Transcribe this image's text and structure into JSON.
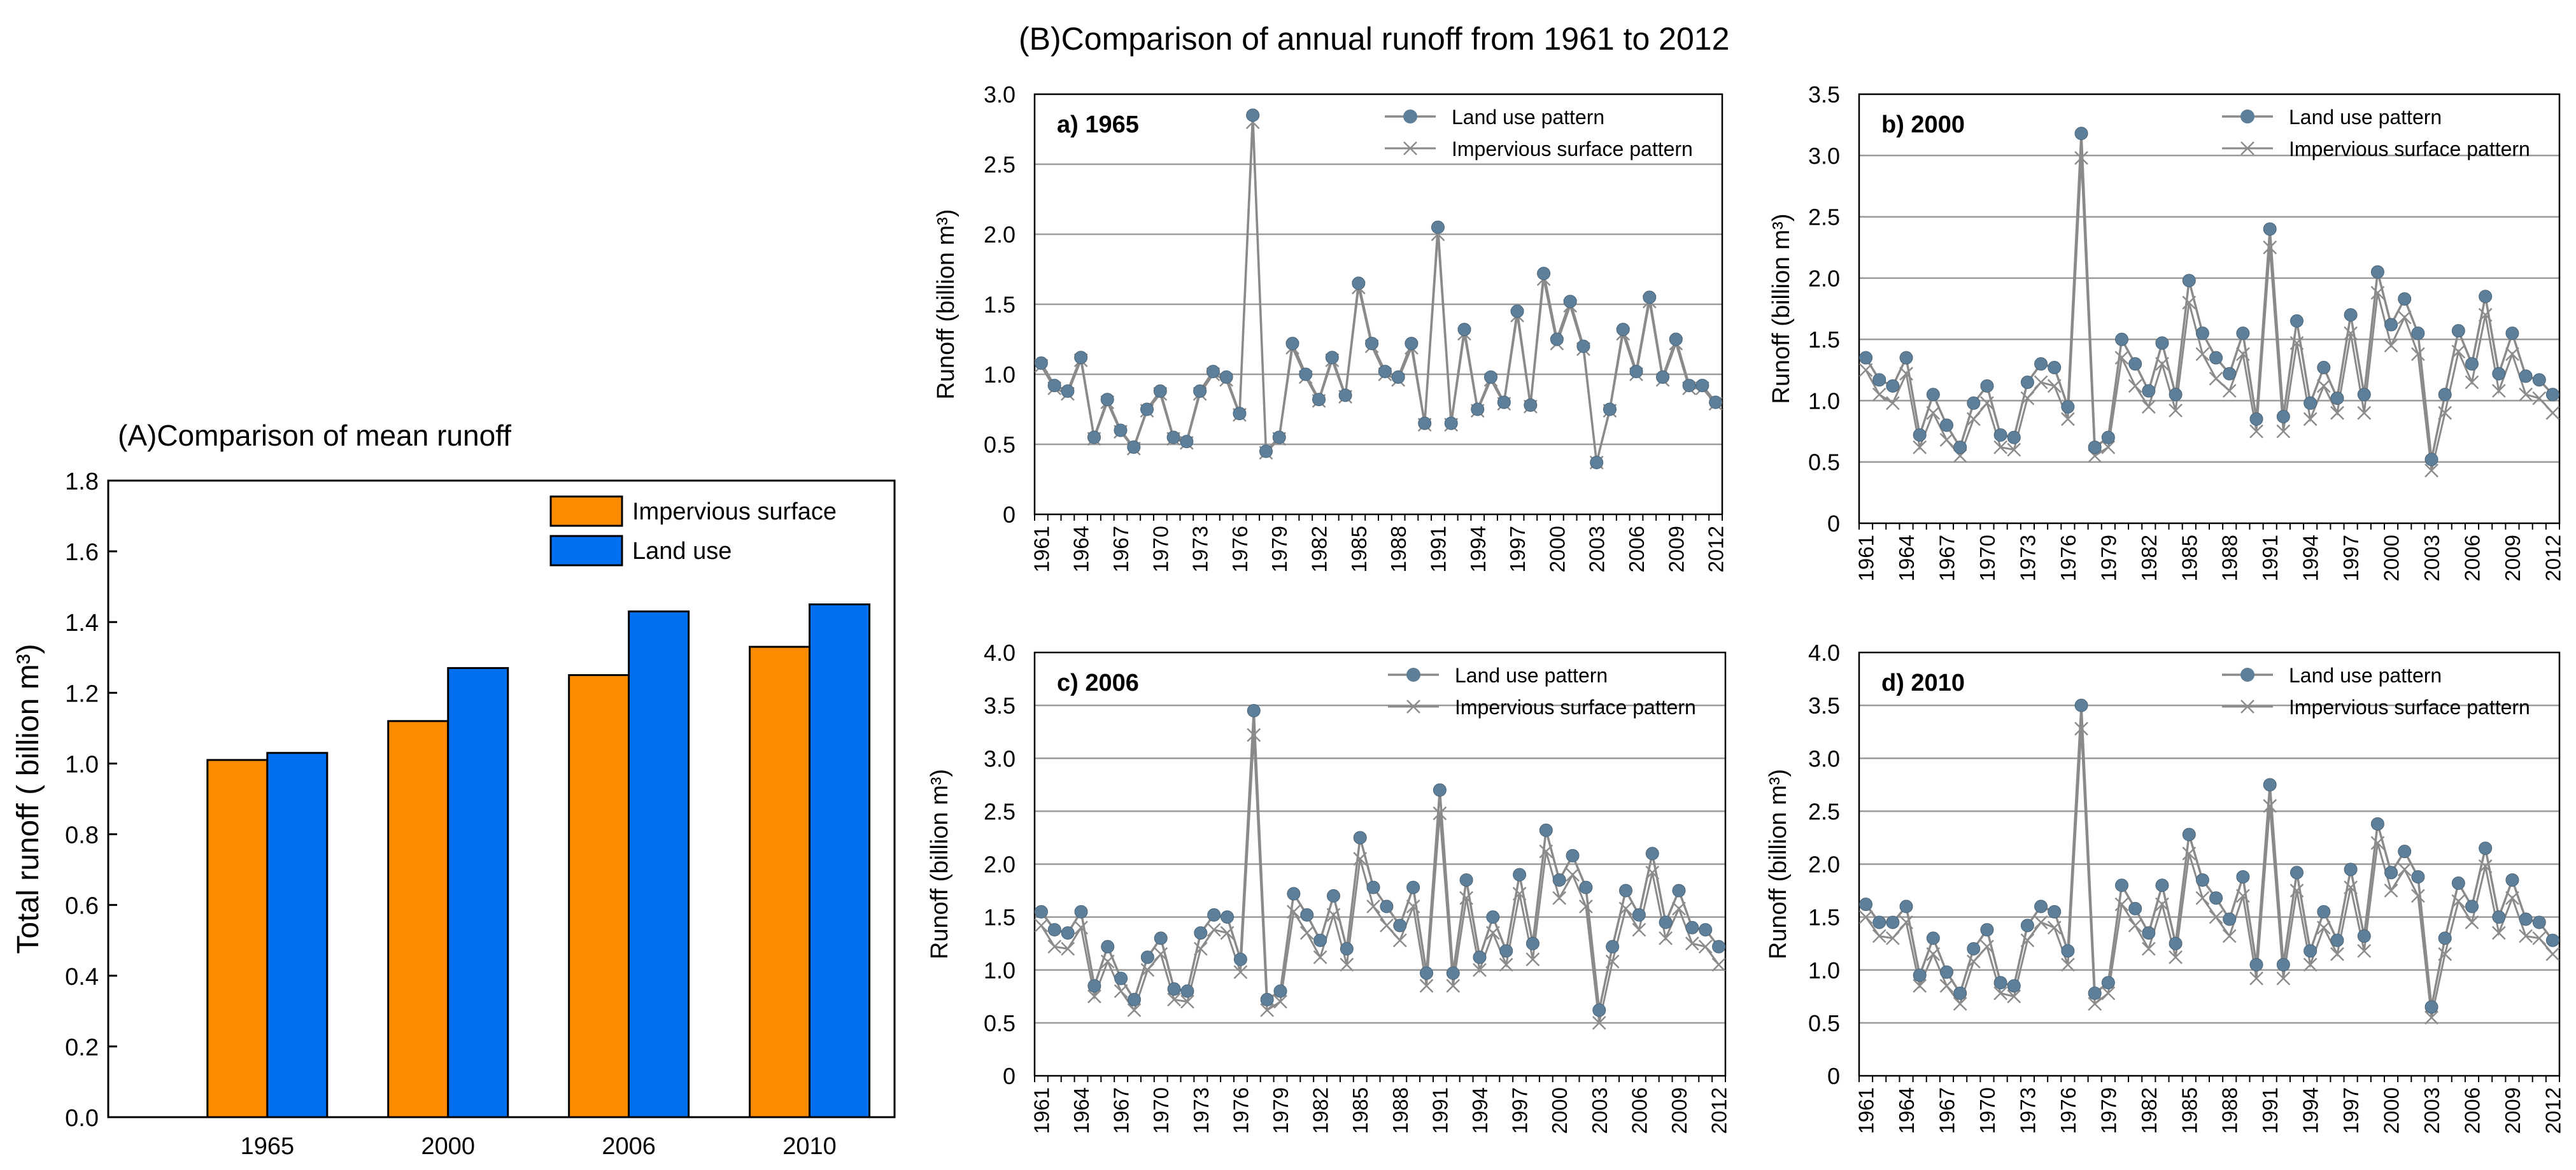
{
  "title_a": "(A)Comparison of mean runoff",
  "title_b": "(B)Comparison of annual runoff from 1961 to 2012",
  "colors": {
    "impervious": "#FF8C00",
    "landuse": "#0070F0",
    "line": "#8A8A8A",
    "marker": "#5E7F99",
    "cross": "#8C8C8C",
    "grid": "#9A9A9A"
  },
  "chart_data": [
    {
      "type": "bar",
      "id": "A",
      "title": "(A)Comparison of mean runoff",
      "categories": [
        "1965",
        "2000",
        "2006",
        "2010"
      ],
      "series": [
        {
          "name": "Impervious surface",
          "values": [
            1.01,
            1.12,
            1.25,
            1.33
          ]
        },
        {
          "name": "Land use",
          "values": [
            1.03,
            1.27,
            1.43,
            1.45
          ]
        }
      ],
      "xlabel": "",
      "ylabel": "Total runoff ( billion m³)",
      "ylim": [
        0,
        1.8
      ],
      "yticks": [
        "0.0",
        "0.2",
        "0.4",
        "0.6",
        "0.8",
        "1.0",
        "1.2",
        "1.4",
        "1.6",
        "1.8"
      ],
      "legend": "top-right"
    },
    {
      "type": "line",
      "id": "a",
      "panel_label": "a) 1965",
      "ylabel": "Runoff (billion m³)",
      "ylim": [
        0,
        3.0
      ],
      "yticks": [
        "0",
        "0.5",
        "1.0",
        "1.5",
        "2.0",
        "2.5",
        "3.0"
      ],
      "xtick_labels": [
        "1961",
        "1964",
        "1967",
        "1970",
        "1973",
        "1976",
        "1979",
        "1982",
        "1985",
        "1988",
        "1991",
        "1994",
        "1997",
        "2000",
        "2003",
        "2006",
        "2009",
        "2012"
      ],
      "x_start": 1961,
      "series": [
        {
          "name": "Land use pattern",
          "values": [
            1.08,
            0.92,
            0.88,
            1.12,
            0.55,
            0.82,
            0.6,
            0.48,
            0.75,
            0.88,
            0.55,
            0.52,
            0.88,
            1.02,
            0.98,
            0.72,
            2.85,
            0.45,
            0.55,
            1.22,
            1.0,
            0.82,
            1.12,
            0.85,
            1.65,
            1.22,
            1.02,
            0.98,
            1.22,
            0.65,
            2.05,
            0.65,
            1.32,
            0.75,
            0.98,
            0.8,
            1.45,
            0.78,
            1.72,
            1.25,
            1.52,
            1.2,
            0.37,
            0.75,
            1.32,
            1.02,
            1.55,
            0.98,
            1.25,
            0.92,
            0.92,
            0.8
          ]
        },
        {
          "name": "Impervious surface pattern",
          "values": [
            1.06,
            0.9,
            0.86,
            1.1,
            0.54,
            0.8,
            0.59,
            0.47,
            0.74,
            0.86,
            0.54,
            0.51,
            0.86,
            1.0,
            0.96,
            0.71,
            2.8,
            0.44,
            0.54,
            1.19,
            0.98,
            0.81,
            1.1,
            0.84,
            1.62,
            1.2,
            1.0,
            0.96,
            1.19,
            0.64,
            2.0,
            0.64,
            1.29,
            0.74,
            0.96,
            0.79,
            1.42,
            0.77,
            1.68,
            1.22,
            1.49,
            1.18,
            0.37,
            0.74,
            1.29,
            1.0,
            1.52,
            0.96,
            1.22,
            0.9,
            0.9,
            0.79
          ]
        }
      ],
      "legend": "top-right"
    },
    {
      "type": "line",
      "id": "b",
      "panel_label": "b) 2000",
      "ylabel": "Runoff (billion m³)",
      "ylim": [
        0,
        3.5
      ],
      "yticks": [
        "0",
        "0.5",
        "1.0",
        "1.5",
        "2.0",
        "2.5",
        "3.0",
        "3.5"
      ],
      "xtick_labels": [
        "1961",
        "1964",
        "1967",
        "1970",
        "1973",
        "1976",
        "1979",
        "1982",
        "1985",
        "1988",
        "1991",
        "1994",
        "1997",
        "2000",
        "2003",
        "2006",
        "2009",
        "2012"
      ],
      "x_start": 1961,
      "series": [
        {
          "name": "Land use pattern",
          "values": [
            1.35,
            1.17,
            1.12,
            1.35,
            0.72,
            1.05,
            0.8,
            0.62,
            0.98,
            1.12,
            0.72,
            0.7,
            1.15,
            1.3,
            1.27,
            0.95,
            3.18,
            0.62,
            0.7,
            1.5,
            1.3,
            1.08,
            1.47,
            1.05,
            1.98,
            1.55,
            1.35,
            1.22,
            1.55,
            0.85,
            2.4,
            0.87,
            1.65,
            0.98,
            1.27,
            1.02,
            1.7,
            1.05,
            2.05,
            1.62,
            1.83,
            1.55,
            0.52,
            1.05,
            1.57,
            1.3,
            1.85,
            1.22,
            1.55,
            1.2,
            1.17,
            1.05
          ]
        },
        {
          "name": "Impervious surface pattern",
          "values": [
            1.25,
            1.05,
            0.98,
            1.22,
            0.62,
            0.9,
            0.68,
            0.55,
            0.85,
            0.98,
            0.62,
            0.6,
            1.02,
            1.15,
            1.12,
            0.85,
            2.98,
            0.55,
            0.62,
            1.35,
            1.12,
            0.95,
            1.3,
            0.92,
            1.8,
            1.38,
            1.18,
            1.08,
            1.38,
            0.75,
            2.25,
            0.75,
            1.47,
            0.85,
            1.12,
            0.9,
            1.55,
            0.9,
            1.88,
            1.45,
            1.68,
            1.38,
            0.43,
            0.9,
            1.4,
            1.15,
            1.7,
            1.08,
            1.38,
            1.05,
            1.02,
            0.9
          ]
        }
      ],
      "legend": "top-right"
    },
    {
      "type": "line",
      "id": "c",
      "panel_label": "c) 2006",
      "ylabel": "Runoff (billion m³)",
      "ylim": [
        0,
        4.0
      ],
      "yticks": [
        "0",
        "0.5",
        "1.0",
        "1.5",
        "2.0",
        "2.5",
        "3.0",
        "3.5",
        "4.0"
      ],
      "xtick_labels": [
        "1961",
        "1964",
        "1967",
        "1970",
        "1973",
        "1976",
        "1979",
        "1982",
        "1985",
        "1988",
        "1991",
        "1994",
        "1997",
        "2000",
        "2003",
        "2006",
        "2009",
        "2012"
      ],
      "x_start": 1961,
      "series": [
        {
          "name": "Land use pattern",
          "values": [
            1.55,
            1.38,
            1.35,
            1.55,
            0.85,
            1.22,
            0.92,
            0.72,
            1.12,
            1.3,
            0.82,
            0.8,
            1.35,
            1.52,
            1.5,
            1.1,
            3.45,
            0.72,
            0.8,
            1.72,
            1.52,
            1.28,
            1.7,
            1.2,
            2.25,
            1.78,
            1.6,
            1.42,
            1.78,
            0.97,
            2.7,
            0.97,
            1.85,
            1.12,
            1.5,
            1.18,
            1.9,
            1.25,
            2.32,
            1.85,
            2.08,
            1.78,
            0.62,
            1.22,
            1.75,
            1.52,
            2.1,
            1.45,
            1.75,
            1.4,
            1.38,
            1.22
          ]
        },
        {
          "name": "Impervious surface pattern",
          "values": [
            1.42,
            1.22,
            1.2,
            1.4,
            0.75,
            1.08,
            0.8,
            0.62,
            1.0,
            1.15,
            0.72,
            0.7,
            1.2,
            1.38,
            1.35,
            0.98,
            3.22,
            0.62,
            0.7,
            1.55,
            1.35,
            1.12,
            1.52,
            1.05,
            2.05,
            1.6,
            1.42,
            1.28,
            1.6,
            0.85,
            2.48,
            0.85,
            1.68,
            1.0,
            1.35,
            1.05,
            1.72,
            1.1,
            2.12,
            1.68,
            1.9,
            1.6,
            0.5,
            1.08,
            1.58,
            1.38,
            1.92,
            1.3,
            1.58,
            1.25,
            1.22,
            1.05
          ]
        }
      ],
      "legend": "top-right"
    },
    {
      "type": "line",
      "id": "d",
      "panel_label": "d) 2010",
      "ylabel": "Runoff (billion m³)",
      "ylim": [
        0,
        4.0
      ],
      "yticks": [
        "0",
        "0.5",
        "1.0",
        "1.5",
        "2.0",
        "2.5",
        "3.0",
        "3.5",
        "4.0"
      ],
      "xtick_labels": [
        "1961",
        "1964",
        "1967",
        "1970",
        "1973",
        "1976",
        "1979",
        "1982",
        "1985",
        "1988",
        "1991",
        "1994",
        "1997",
        "2000",
        "2003",
        "2006",
        "2009",
        "2012"
      ],
      "x_start": 1961,
      "series": [
        {
          "name": "Land use pattern",
          "values": [
            1.62,
            1.45,
            1.45,
            1.6,
            0.95,
            1.3,
            0.98,
            0.78,
            1.2,
            1.38,
            0.88,
            0.85,
            1.42,
            1.6,
            1.55,
            1.18,
            3.5,
            0.78,
            0.88,
            1.8,
            1.58,
            1.35,
            1.8,
            1.25,
            2.28,
            1.85,
            1.68,
            1.48,
            1.88,
            1.05,
            2.75,
            1.05,
            1.92,
            1.18,
            1.55,
            1.28,
            1.95,
            1.32,
            2.38,
            1.92,
            2.12,
            1.88,
            0.65,
            1.3,
            1.82,
            1.6,
            2.15,
            1.5,
            1.85,
            1.48,
            1.45,
            1.28
          ]
        },
        {
          "name": "Impervious surface pattern",
          "values": [
            1.5,
            1.32,
            1.3,
            1.45,
            0.85,
            1.15,
            0.85,
            0.68,
            1.08,
            1.22,
            0.78,
            0.75,
            1.28,
            1.45,
            1.4,
            1.05,
            3.28,
            0.68,
            0.78,
            1.62,
            1.42,
            1.2,
            1.62,
            1.12,
            2.1,
            1.68,
            1.5,
            1.32,
            1.7,
            0.92,
            2.55,
            0.92,
            1.75,
            1.05,
            1.4,
            1.15,
            1.78,
            1.18,
            2.2,
            1.75,
            1.95,
            1.7,
            0.55,
            1.15,
            1.65,
            1.45,
            1.98,
            1.35,
            1.68,
            1.32,
            1.3,
            1.15
          ]
        }
      ],
      "legend": "top-right"
    }
  ]
}
